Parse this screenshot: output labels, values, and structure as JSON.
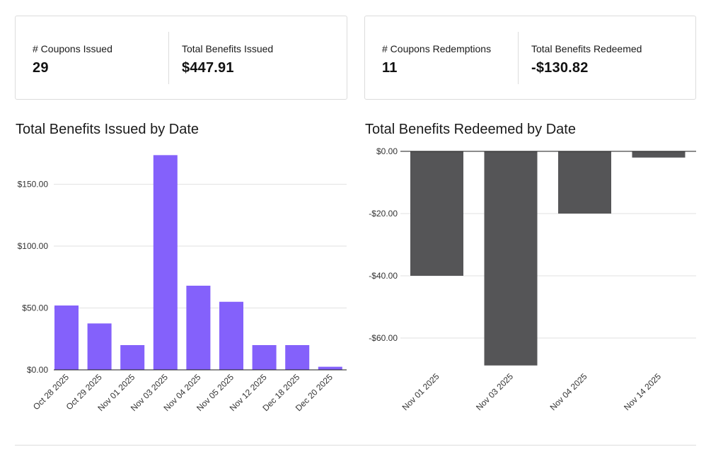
{
  "summary_left": {
    "coupons_issued_label": "# Coupons Issued",
    "coupons_issued_value": "29",
    "benefits_issued_label": "Total Benefits Issued",
    "benefits_issued_value": "$447.91"
  },
  "summary_right": {
    "coupons_redemptions_label": "# Coupons Redemptions",
    "coupons_redemptions_value": "11",
    "benefits_redeemed_label": "Total Benefits Redeemed",
    "benefits_redeemed_value": "-$130.82"
  },
  "chart_data": [
    {
      "type": "bar",
      "title": "Total Benefits Issued by Date",
      "categories": [
        "Oct 28 2025",
        "Oct 29 2025",
        "Nov 01 2025",
        "Nov 03 2025",
        "Nov 04 2025",
        "Nov 05 2025",
        "Nov 12 2025",
        "Dec 18 2025",
        "Dec 20 2025"
      ],
      "values": [
        52,
        37.5,
        20,
        173.5,
        68,
        55,
        20,
        20,
        2.5
      ],
      "ylim": [
        0,
        200
      ],
      "yticks": [
        0,
        50,
        100,
        150
      ],
      "ytick_labels": [
        "$0.00",
        "$50.00",
        "$100.00",
        "$150.00"
      ],
      "color": "#8461fb",
      "grid": true
    },
    {
      "type": "bar",
      "title": "Total Benefits Redeemed by Date",
      "categories": [
        "Nov 01 2025",
        "Nov 03 2025",
        "Nov 04 2025",
        "Nov 14 2025"
      ],
      "values": [
        -40,
        -68.82,
        -20,
        -2
      ],
      "ylim": [
        -69,
        0
      ],
      "yticks": [
        0,
        -20,
        -40,
        -60
      ],
      "ytick_labels": [
        "$0.00",
        "-$20.00",
        "-$40.00",
        "-$60.00"
      ],
      "color": "#555557",
      "grid": true
    }
  ]
}
